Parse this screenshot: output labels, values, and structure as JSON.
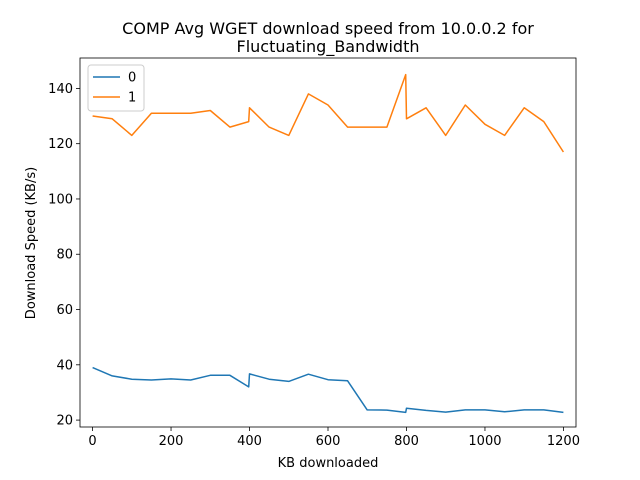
{
  "chart_data": {
    "type": "line",
    "title_line1": "COMP Avg WGET download speed from 10.0.0.2 for",
    "title_line2": "Fluctuating_Bandwidth",
    "xlabel": "KB downloaded",
    "ylabel": "Download Speed (KB/s)",
    "xlim": [
      -32,
      1232
    ],
    "ylim": [
      17.5,
      151
    ],
    "xticks": [
      0,
      200,
      400,
      600,
      800,
      1000,
      1200
    ],
    "yticks": [
      20,
      40,
      60,
      80,
      100,
      120,
      140
    ],
    "grid": false,
    "legend_position": "top-left",
    "series": [
      {
        "name": "0",
        "color": "#1f77b4",
        "x": [
          0,
          50,
          100,
          150,
          200,
          250,
          300,
          350,
          398,
          400,
          450,
          500,
          550,
          600,
          650,
          700,
          750,
          798,
          800,
          850,
          900,
          950,
          1000,
          1050,
          1100,
          1150,
          1200
        ],
        "y": [
          39,
          36,
          34.8,
          34.5,
          34.9,
          34.5,
          36.2,
          36.2,
          32,
          36.7,
          34.8,
          34,
          36.6,
          34.6,
          34.2,
          23.7,
          23.6,
          22.8,
          24.3,
          23.5,
          22.9,
          23.7,
          23.7,
          23,
          23.7,
          23.7,
          22.8
        ]
      },
      {
        "name": "1",
        "color": "#ff7f0e",
        "x": [
          0,
          50,
          100,
          150,
          200,
          250,
          300,
          350,
          398,
          400,
          450,
          500,
          550,
          600,
          650,
          700,
          750,
          798,
          800,
          850,
          900,
          950,
          1000,
          1050,
          1100,
          1150,
          1200
        ],
        "y": [
          130,
          129,
          123,
          131,
          131,
          131,
          132,
          126,
          128,
          133,
          126,
          123,
          138,
          134,
          126,
          126,
          126,
          145,
          129,
          133,
          123,
          134,
          127,
          123,
          133,
          128,
          117
        ]
      }
    ]
  }
}
